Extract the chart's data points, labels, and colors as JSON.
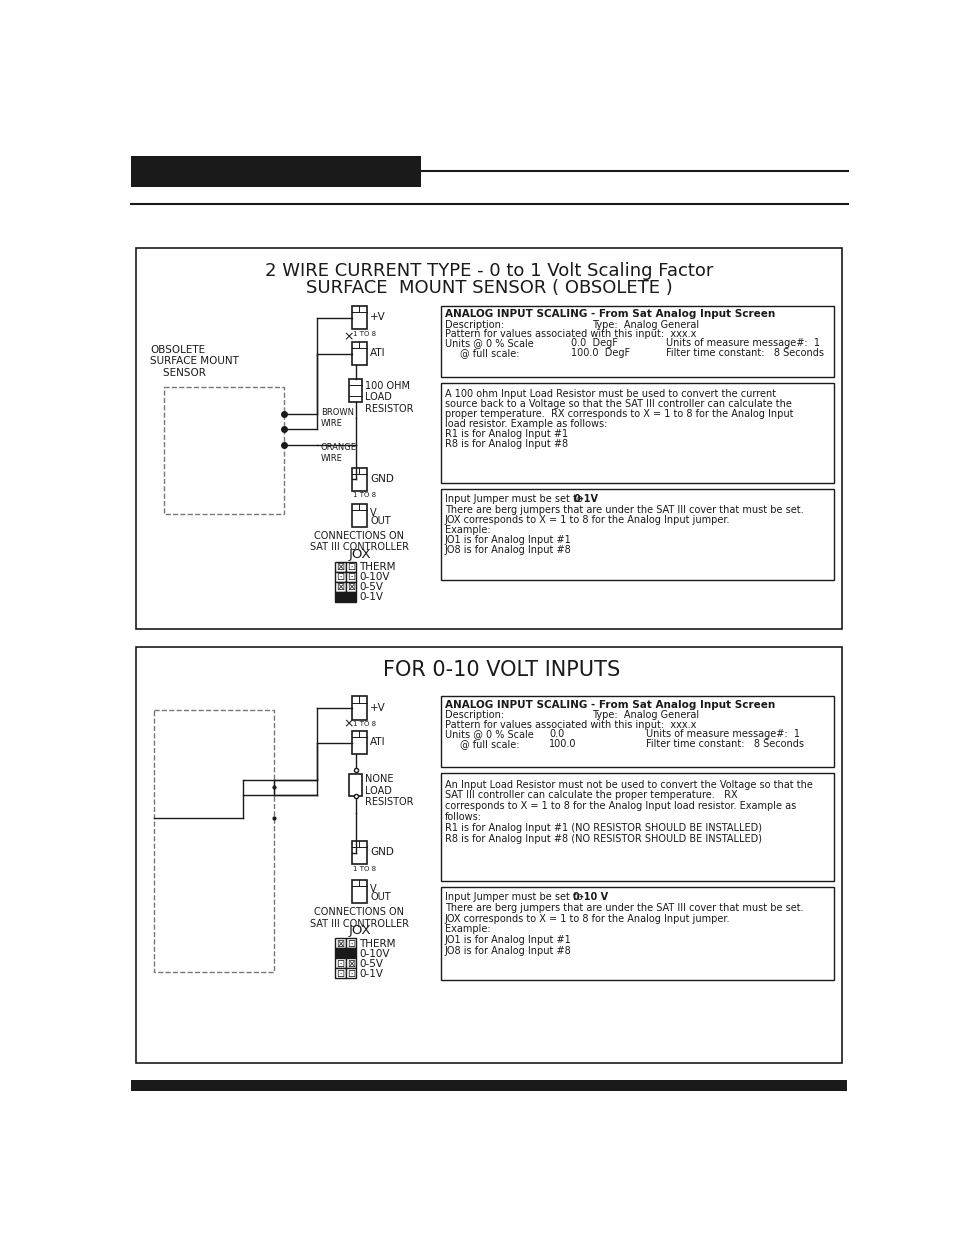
{
  "panel1_title_line1": "2 WIRE CURRENT TYPE - 0 to 1 Volt Scaling Factor",
  "panel1_title_line2": "SURFACE  MOUNT SENSOR ( OBSOLETE )",
  "panel1_sensor_label": "OBSOLETE\nSURFACE MOUNT\n    SENSOR",
  "panel1_brown_wire": "BROWN\nWIRE",
  "panel1_orange_wire": "ORANGE\nWIRE",
  "panel1_resistor_label": "100 OHM\nLOAD\nRESISTOR",
  "panel1_conn_label": "CONNECTIONS ON\nSAT III CONTROLLER",
  "panel1_jox": "JOX",
  "panel1_therm": "THERM",
  "panel1_010v": "0-10V",
  "panel1_05v": "0-5V",
  "panel1_01v": "0-1V",
  "panel1_pv_label": "+V",
  "panel1_ati_label": "ATI",
  "panel1_gnd_label": "GND",
  "panel1_v_label": "V",
  "panel1_out_label": "OUT",
  "panel1_1to8_label": "1 TO 8",
  "panel1_box1_title": "ANALOG INPUT SCALING - From Sat Analog Input Screen",
  "panel1_box1_l1l": "Description:",
  "panel1_box1_l1r": "Type:  Analog General",
  "panel1_box1_l2": "Pattern for values associated with this input:  xxx.x",
  "panel1_box1_l3l": "Units @ 0 % Scale",
  "panel1_box1_l3m": "0.0  DegF",
  "panel1_box1_l3r": "Units of measure message#:  1",
  "panel1_box1_l4l": "@ full scale:",
  "panel1_box1_l4m": "100.0  DegF",
  "panel1_box1_l4r": "Filter time constant:   8 Seconds",
  "panel1_box2_lines": [
    "A 100 ohm Input Load Resistor must be used to convert the current",
    "source back to a Voltage so that the SAT III controller can calculate the",
    "proper temperature.  RX corresponds to X = 1 to 8 for the Analog Input",
    "load resistor. Example as follows:",
    "R1 is for Analog Input #1",
    "R8 is for Analog Input #8"
  ],
  "panel1_box3_line1_pre": "Input Jumper must be set to ",
  "panel1_box3_line1_bold": "0-1V",
  "panel1_box3_lines": [
    "There are berg jumpers that are under the SAT III cover that must be set.",
    "JOX corresponds to X = 1 to 8 for the Analog Input jumper.",
    "Example:",
    "JO1 is for Analog Input #1",
    "JO8 is for Analog Input #8"
  ],
  "panel2_title": "FOR 0-10 VOLT INPUTS",
  "panel2_resistor_label": "NONE\nLOAD\nRESISTOR",
  "panel2_conn_label": "CONNECTIONS ON\nSAT III CONTROLLER",
  "panel2_jox": "JOX",
  "panel2_therm": "THERM",
  "panel2_010v": "0-10V",
  "panel2_05v": "0-5V",
  "panel2_01v": "0-1V",
  "panel2_pv_label": "+V",
  "panel2_ati_label": "ATI",
  "panel2_gnd_label": "GND",
  "panel2_v_label": "V",
  "panel2_out_label": "OUT",
  "panel2_1to8_label": "1 TO 8",
  "panel2_box1_title": "ANALOG INPUT SCALING - From Sat Analog Input Screen",
  "panel2_box1_l1l": "Description:",
  "panel2_box1_l1r": "Type:  Analog General",
  "panel2_box1_l2": "Pattern for values associated with this input:  xxx.x",
  "panel2_box1_l3l": "Units @ 0 % Scale",
  "panel2_box1_l3m": "0.0",
  "panel2_box1_l3r": "Units of measure message#:  1",
  "panel2_box1_l4l": "@ full scale:",
  "panel2_box1_l4m": "100.0",
  "panel2_box1_l4r": "Filter time constant:   8 Seconds",
  "panel2_box2_lines": [
    "An Input Load Resistor must not be used to convert the Voltage so that the",
    "SAT III controller can calculate the proper temperature.   RX",
    "corresponds to X = 1 to 8 for the Analog Input load resistor. Example as",
    "follows:",
    "R1 is for Analog Input #1 (NO RESISTOR SHOULD BE INSTALLED)",
    "R8 is for Analog Input #8 (NO RESISTOR SHOULD BE INSTALLED)"
  ],
  "panel2_box3_line1_pre": "Input Jumper must be set to ",
  "panel2_box3_line1_bold": "0-10 V",
  "panel2_box3_lines": [
    "There are berg jumpers that are under the SAT III cover that must be set.",
    "JOX corresponds to X = 1 to 8 for the Analog Input jumper.",
    "Example:",
    "JO1 is for Analog Input #1",
    "JO8 is for Analog Input #8"
  ]
}
